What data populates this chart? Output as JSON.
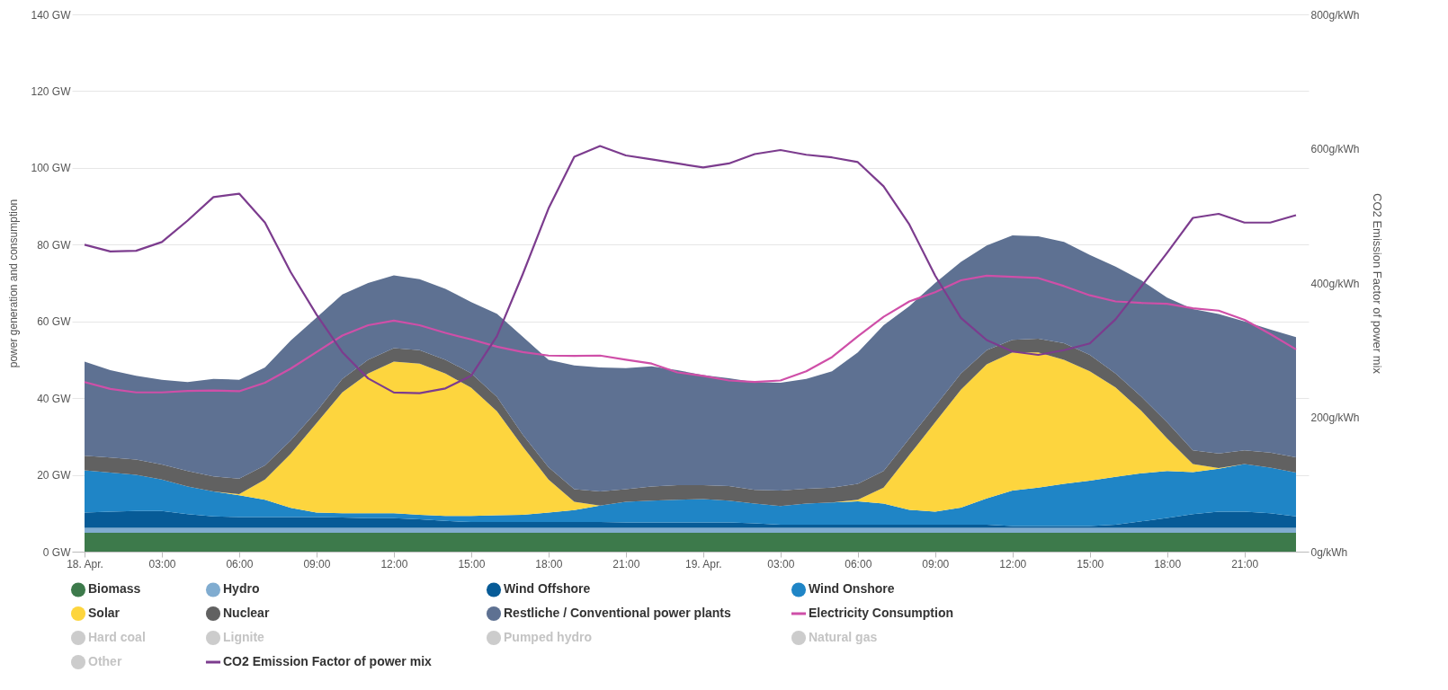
{
  "chart_data": {
    "type": "area",
    "stacked": true,
    "ylabel": "power generation and consumption",
    "y2label": "CO2 Emission Factor of power mix",
    "grid": "y",
    "legend": "bottom",
    "categories": [
      "18. Apr.",
      null,
      null,
      "03:00",
      null,
      null,
      "06:00",
      null,
      null,
      "09:00",
      null,
      null,
      "12:00",
      null,
      null,
      "15:00",
      null,
      null,
      "18:00",
      null,
      null,
      "21:00",
      null,
      null,
      "19. Apr.",
      null,
      null,
      "03:00",
      null,
      null,
      "06:00",
      null,
      null,
      "09:00",
      null,
      null,
      "12:00",
      null,
      null,
      "15:00",
      null,
      null,
      "18:00",
      null,
      null,
      "21:00",
      null,
      null
    ],
    "ylim": [
      0,
      140
    ],
    "yticks": [
      {
        "value": 0,
        "label": "0 GW"
      },
      {
        "value": 20,
        "label": "20 GW"
      },
      {
        "value": 40,
        "label": "40 GW"
      },
      {
        "value": 60,
        "label": "60 GW"
      },
      {
        "value": 80,
        "label": "80 GW"
      },
      {
        "value": 100,
        "label": "100 GW"
      },
      {
        "value": 120,
        "label": "120 GW"
      },
      {
        "value": 140,
        "label": "140 GW"
      }
    ],
    "y2lim": [
      0,
      800
    ],
    "y2ticks": [
      {
        "value": 0,
        "label": "0g/kWh"
      },
      {
        "value": 200,
        "label": "200g/kWh"
      },
      {
        "value": 400,
        "label": "400g/kWh"
      },
      {
        "value": 600,
        "label": "600g/kWh"
      },
      {
        "value": 800,
        "label": "800g/kWh"
      }
    ],
    "series": [
      {
        "name": "Biomass",
        "type": "area",
        "color": "#3d7a4b",
        "values": [
          4.9,
          4.9,
          4.9,
          4.9,
          4.9,
          4.9,
          4.9,
          4.9,
          4.9,
          4.9,
          4.9,
          4.9,
          4.9,
          4.9,
          4.9,
          4.9,
          4.9,
          4.9,
          4.9,
          4.9,
          4.9,
          4.9,
          4.9,
          4.9,
          4.9,
          4.9,
          4.9,
          4.9,
          4.9,
          4.9,
          4.9,
          4.9,
          4.9,
          4.9,
          4.9,
          4.9,
          4.9,
          4.9,
          4.9,
          4.9,
          4.9,
          4.9,
          4.9,
          4.9,
          4.9,
          4.9,
          4.9,
          4.9
        ]
      },
      {
        "name": "Hydro",
        "type": "area",
        "color": "#80acd0",
        "values": [
          1.3,
          1.3,
          1.3,
          1.3,
          1.3,
          1.3,
          1.3,
          1.3,
          1.3,
          1.3,
          1.3,
          1.3,
          1.3,
          1.3,
          1.3,
          1.3,
          1.3,
          1.3,
          1.3,
          1.3,
          1.3,
          1.3,
          1.3,
          1.3,
          1.3,
          1.3,
          1.3,
          1.3,
          1.3,
          1.3,
          1.3,
          1.3,
          1.3,
          1.3,
          1.3,
          1.3,
          1.3,
          1.3,
          1.3,
          1.3,
          1.3,
          1.3,
          1.3,
          1.3,
          1.3,
          1.3,
          1.3,
          1.3
        ]
      },
      {
        "name": "Wind Offshore",
        "type": "area",
        "color": "#075b97",
        "values": [
          4.0,
          4.2,
          4.4,
          4.4,
          3.6,
          3.0,
          2.8,
          2.8,
          2.8,
          2.8,
          2.7,
          2.5,
          2.5,
          2.2,
          1.8,
          1.5,
          1.5,
          1.5,
          1.5,
          1.5,
          1.5,
          1.4,
          1.4,
          1.4,
          1.4,
          1.4,
          1.2,
          0.8,
          0.8,
          0.8,
          0.8,
          0.8,
          0.8,
          0.8,
          0.8,
          0.8,
          0.5,
          0.5,
          0.5,
          0.5,
          0.8,
          1.7,
          2.6,
          3.6,
          4.2,
          4.2,
          3.8,
          3.0
        ]
      },
      {
        "name": "Wind Onshore",
        "type": "area",
        "color": "#1f85c6",
        "values": [
          11.0,
          10.2,
          9.4,
          8.2,
          7.2,
          6.5,
          5.7,
          4.5,
          2.4,
          1.2,
          1.1,
          1.3,
          1.3,
          1.2,
          1.3,
          1.6,
          1.8,
          1.9,
          2.5,
          3.1,
          4.3,
          5.4,
          5.7,
          5.9,
          6.1,
          5.7,
          5.1,
          4.9,
          5.5,
          5.8,
          6.1,
          5.5,
          3.9,
          3.4,
          4.5,
          6.9,
          9.2,
          10.0,
          11.0,
          11.8,
          12.5,
          12.5,
          12.2,
          10.9,
          11.2,
          12.4,
          11.9,
          11.4
        ]
      },
      {
        "name": "Solar",
        "type": "area",
        "color": "#fdd53e",
        "values": [
          0,
          0,
          0,
          0,
          0,
          0,
          0.3,
          5.3,
          14.1,
          23.3,
          31.5,
          36.4,
          39.5,
          39.4,
          37.1,
          33.4,
          27.1,
          17.8,
          8.6,
          2.2,
          0,
          0,
          0,
          0,
          0,
          0,
          0,
          0,
          0,
          0,
          0.4,
          4.2,
          14.3,
          23.3,
          30.7,
          34.9,
          36.0,
          35.2,
          32.3,
          28.5,
          23.3,
          16.3,
          8.5,
          2.1,
          0.2,
          0,
          0,
          0
        ]
      },
      {
        "name": "Nuclear",
        "type": "area",
        "color": "#616161",
        "values": [
          3.8,
          3.9,
          4.0,
          3.9,
          4.0,
          3.9,
          4.0,
          3.7,
          3.5,
          3.0,
          3.5,
          3.6,
          3.5,
          3.5,
          3.6,
          3.8,
          3.7,
          3.1,
          3.2,
          3.3,
          3.7,
          3.3,
          3.7,
          3.8,
          3.6,
          3.8,
          3.6,
          4.0,
          3.9,
          3.9,
          4.2,
          4.3,
          4.3,
          4.2,
          4.2,
          3.7,
          3.3,
          3.6,
          4.3,
          4.3,
          3.6,
          3.7,
          4.2,
          3.6,
          3.8,
          3.6,
          3.9,
          4.0
        ]
      },
      {
        "name": "Restliche / Conventional power plants",
        "type": "area",
        "color": "#5e7192",
        "values": [
          24.5,
          22.8,
          21.8,
          22.1,
          23.2,
          25.4,
          25.8,
          25.5,
          26.0,
          24.5,
          22.0,
          20.0,
          19.0,
          18.5,
          18.5,
          18.5,
          21.7,
          25.5,
          28.0,
          32.2,
          32.3,
          31.5,
          31.3,
          30.0,
          28.7,
          28.1,
          28.1,
          28.1,
          28.6,
          30.3,
          34.2,
          38.0,
          34.5,
          32.1,
          29.1,
          27.3,
          27.2,
          26.7,
          26.4,
          26.0,
          27.9,
          30.3,
          32.5,
          36.8,
          36.3,
          33.6,
          32.1,
          31.3
        ]
      },
      {
        "name": "Electricity Consumption",
        "type": "line",
        "color": "#cf4fa8",
        "values": [
          44.2,
          42.4,
          41.5,
          41.5,
          41.9,
          42,
          41.8,
          44,
          47.7,
          52,
          56.3,
          59,
          60.2,
          59,
          57,
          55.3,
          53.4,
          52,
          51.1,
          51,
          51.1,
          50,
          49,
          46.7,
          45.8,
          44.6,
          44.2,
          44.6,
          47,
          50.7,
          56.1,
          61.2,
          65.2,
          67.6,
          70.7,
          71.9,
          71.6,
          71.3,
          69.2,
          66.8,
          65.2,
          64.8,
          64.6,
          63.4,
          62.8,
          60.4,
          56.7,
          52.7
        ]
      },
      {
        "name": "Hard coal",
        "type": "area",
        "color": "#cccccc",
        "values": [
          null,
          null,
          null,
          null,
          null,
          null,
          null,
          null,
          null,
          null,
          null,
          null,
          null,
          null,
          null,
          null,
          null,
          null,
          null,
          null,
          null,
          null,
          null,
          null,
          null,
          null,
          null,
          null,
          null,
          null,
          null,
          null,
          null,
          null,
          null,
          null,
          null,
          null,
          null,
          null,
          null,
          null,
          null,
          null,
          null,
          null,
          null,
          null
        ]
      },
      {
        "name": "Lignite",
        "type": "area",
        "color": "#cccccc",
        "values": [
          null,
          null,
          null,
          null,
          null,
          null,
          null,
          null,
          null,
          null,
          null,
          null,
          null,
          null,
          null,
          null,
          null,
          null,
          null,
          null,
          null,
          null,
          null,
          null,
          null,
          null,
          null,
          null,
          null,
          null,
          null,
          null,
          null,
          null,
          null,
          null,
          null,
          null,
          null,
          null,
          null,
          null,
          null,
          null,
          null,
          null,
          null,
          null
        ]
      },
      {
        "name": "Pumped hydro",
        "type": "area",
        "color": "#cccccc",
        "values": [
          null,
          null,
          null,
          null,
          null,
          null,
          null,
          null,
          null,
          null,
          null,
          null,
          null,
          null,
          null,
          null,
          null,
          null,
          null,
          null,
          null,
          null,
          null,
          null,
          null,
          null,
          null,
          null,
          null,
          null,
          null,
          null,
          null,
          null,
          null,
          null,
          null,
          null,
          null,
          null,
          null,
          null,
          null,
          null,
          null,
          null,
          null,
          null
        ]
      },
      {
        "name": "Natural gas",
        "type": "area",
        "color": "#cccccc",
        "values": [
          null,
          null,
          null,
          null,
          null,
          null,
          null,
          null,
          null,
          null,
          null,
          null,
          null,
          null,
          null,
          null,
          null,
          null,
          null,
          null,
          null,
          null,
          null,
          null,
          null,
          null,
          null,
          null,
          null,
          null,
          null,
          null,
          null,
          null,
          null,
          null,
          null,
          null,
          null,
          null,
          null,
          null,
          null,
          null,
          null,
          null,
          null,
          null
        ]
      },
      {
        "name": "Other",
        "type": "area",
        "color": "#cccccc",
        "values": [
          null,
          null,
          null,
          null,
          null,
          null,
          null,
          null,
          null,
          null,
          null,
          null,
          null,
          null,
          null,
          null,
          null,
          null,
          null,
          null,
          null,
          null,
          null,
          null,
          null,
          null,
          null,
          null,
          null,
          null,
          null,
          null,
          null,
          null,
          null,
          null,
          null,
          null,
          null,
          null,
          null,
          null,
          null,
          null,
          null,
          null,
          null,
          null
        ]
      },
      {
        "name": "CO2 Emission Factor of power mix",
        "type": "line",
        "axis": "y2",
        "color": "#7c3c8e",
        "values": [
          457,
          447,
          448,
          461,
          493,
          528,
          533,
          490,
          416,
          353,
          297,
          258,
          237,
          236,
          243,
          262,
          321,
          413,
          511,
          588,
          604,
          590,
          584,
          578,
          572,
          578,
          592,
          598,
          591,
          587,
          580,
          544,
          487,
          411,
          348,
          315,
          298,
          293,
          300,
          310,
          346,
          395,
          445,
          497,
          503,
          490,
          490,
          501
        ]
      }
    ]
  }
}
